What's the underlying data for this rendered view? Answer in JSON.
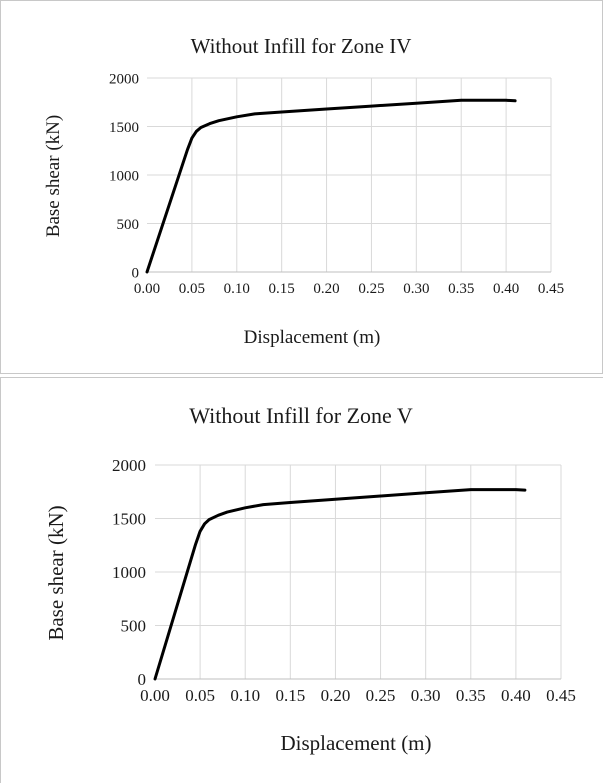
{
  "chart_data": [
    {
      "type": "line",
      "title": "Without Infill for Zone IV",
      "xlabel": "Displacement  (m)",
      "ylabel": "Base shear  (kN)",
      "xlim": [
        0,
        0.45
      ],
      "ylim": [
        0,
        2000
      ],
      "x_ticks": [
        "0.00",
        "0.05",
        "0.10",
        "0.15",
        "0.20",
        "0.25",
        "0.30",
        "0.35",
        "0.40",
        "0.45"
      ],
      "y_ticks": [
        "0",
        "500",
        "1000",
        "1500",
        "2000"
      ],
      "grid": true,
      "series": [
        {
          "color": "#000000",
          "x": [
            0.0,
            0.045,
            0.05,
            0.055,
            0.06,
            0.07,
            0.08,
            0.1,
            0.12,
            0.15,
            0.2,
            0.25,
            0.3,
            0.35,
            0.4,
            0.41
          ],
          "y": [
            0,
            1260,
            1380,
            1450,
            1490,
            1530,
            1560,
            1600,
            1630,
            1650,
            1680,
            1710,
            1740,
            1770,
            1770,
            1765
          ]
        }
      ]
    },
    {
      "type": "line",
      "title": "Without Infill for Zone V",
      "xlabel": "Displacement  (m)",
      "ylabel": "Base shear  (kN)",
      "xlim": [
        0,
        0.45
      ],
      "ylim": [
        0,
        2000
      ],
      "x_ticks": [
        "0.00",
        "0.05",
        "0.10",
        "0.15",
        "0.20",
        "0.25",
        "0.30",
        "0.35",
        "0.40",
        "0.45"
      ],
      "y_ticks": [
        "0",
        "500",
        "1000",
        "1500",
        "2000"
      ],
      "grid": true,
      "series": [
        {
          "color": "#000000",
          "x": [
            0.0,
            0.045,
            0.05,
            0.055,
            0.06,
            0.07,
            0.08,
            0.1,
            0.12,
            0.15,
            0.2,
            0.25,
            0.3,
            0.35,
            0.4,
            0.41
          ],
          "y": [
            0,
            1260,
            1380,
            1450,
            1490,
            1530,
            1560,
            1600,
            1630,
            1650,
            1680,
            1710,
            1740,
            1770,
            1770,
            1765
          ]
        }
      ]
    }
  ]
}
